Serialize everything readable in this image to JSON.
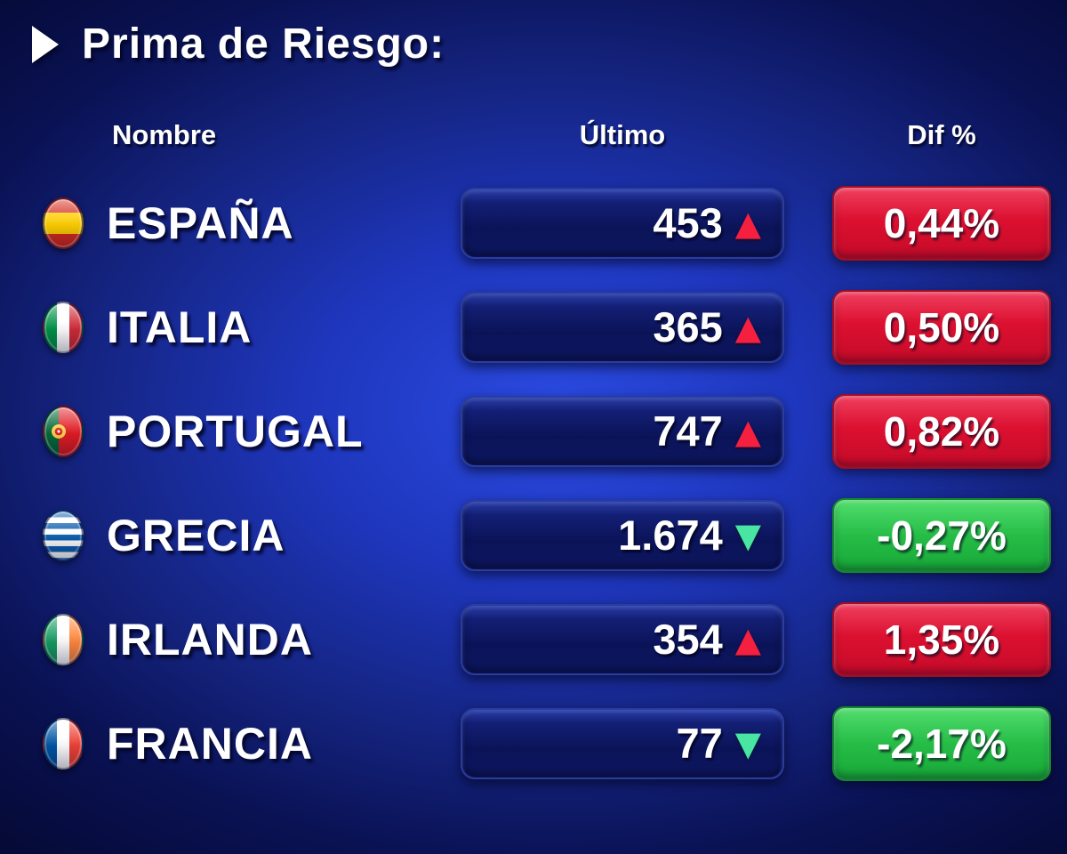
{
  "title": "Prima de Riesgo:",
  "columns": {
    "name": "Nombre",
    "last": "Último",
    "dif": "Dif %"
  },
  "rows": [
    {
      "country": "ESPAÑA",
      "flag": "spain",
      "last": "453",
      "direction": "up",
      "dif": "0,44%",
      "dif_color": "red"
    },
    {
      "country": "ITALIA",
      "flag": "italy",
      "last": "365",
      "direction": "up",
      "dif": "0,50%",
      "dif_color": "red"
    },
    {
      "country": "PORTUGAL",
      "flag": "portugal",
      "last": "747",
      "direction": "up",
      "dif": "0,82%",
      "dif_color": "red"
    },
    {
      "country": "GRECIA",
      "flag": "greece",
      "last": "1.674",
      "direction": "down",
      "dif": "-0,27%",
      "dif_color": "green"
    },
    {
      "country": "IRLANDA",
      "flag": "ireland",
      "last": "354",
      "direction": "up",
      "dif": "1,35%",
      "dif_color": "red"
    },
    {
      "country": "FRANCIA",
      "flag": "france",
      "last": "77",
      "direction": "down",
      "dif": "-2,17%",
      "dif_color": "green"
    }
  ],
  "icons": {
    "up_arrow": "▲",
    "down_arrow": "▼",
    "play_marker": "▶"
  },
  "colors": {
    "background_center": "#2a4ae0",
    "background_edge": "#050a36",
    "pill_navy": "#0b1358",
    "badge_red": "#dc1030",
    "badge_green": "#26bd47",
    "up_arrow_red": "#f5203f",
    "down_arrow_green": "#49e5a3",
    "text": "#ffffff"
  },
  "chart_data": {
    "type": "table",
    "title": "Prima de Riesgo:",
    "columns": [
      "Nombre",
      "Último",
      "Dif %"
    ],
    "rows": [
      [
        "ESPAÑA",
        453,
        "0,44%"
      ],
      [
        "ITALIA",
        365,
        "0,50%"
      ],
      [
        "PORTUGAL",
        747,
        "0,82%"
      ],
      [
        "GRECIA",
        1674,
        "-0,27%"
      ],
      [
        "IRLANDA",
        354,
        "1,35%"
      ],
      [
        "FRANCIA",
        77,
        "-2,17%"
      ]
    ],
    "notes": "Risk premium board; red badge = positive change with red up arrow, green badge = negative change with green down arrow"
  }
}
